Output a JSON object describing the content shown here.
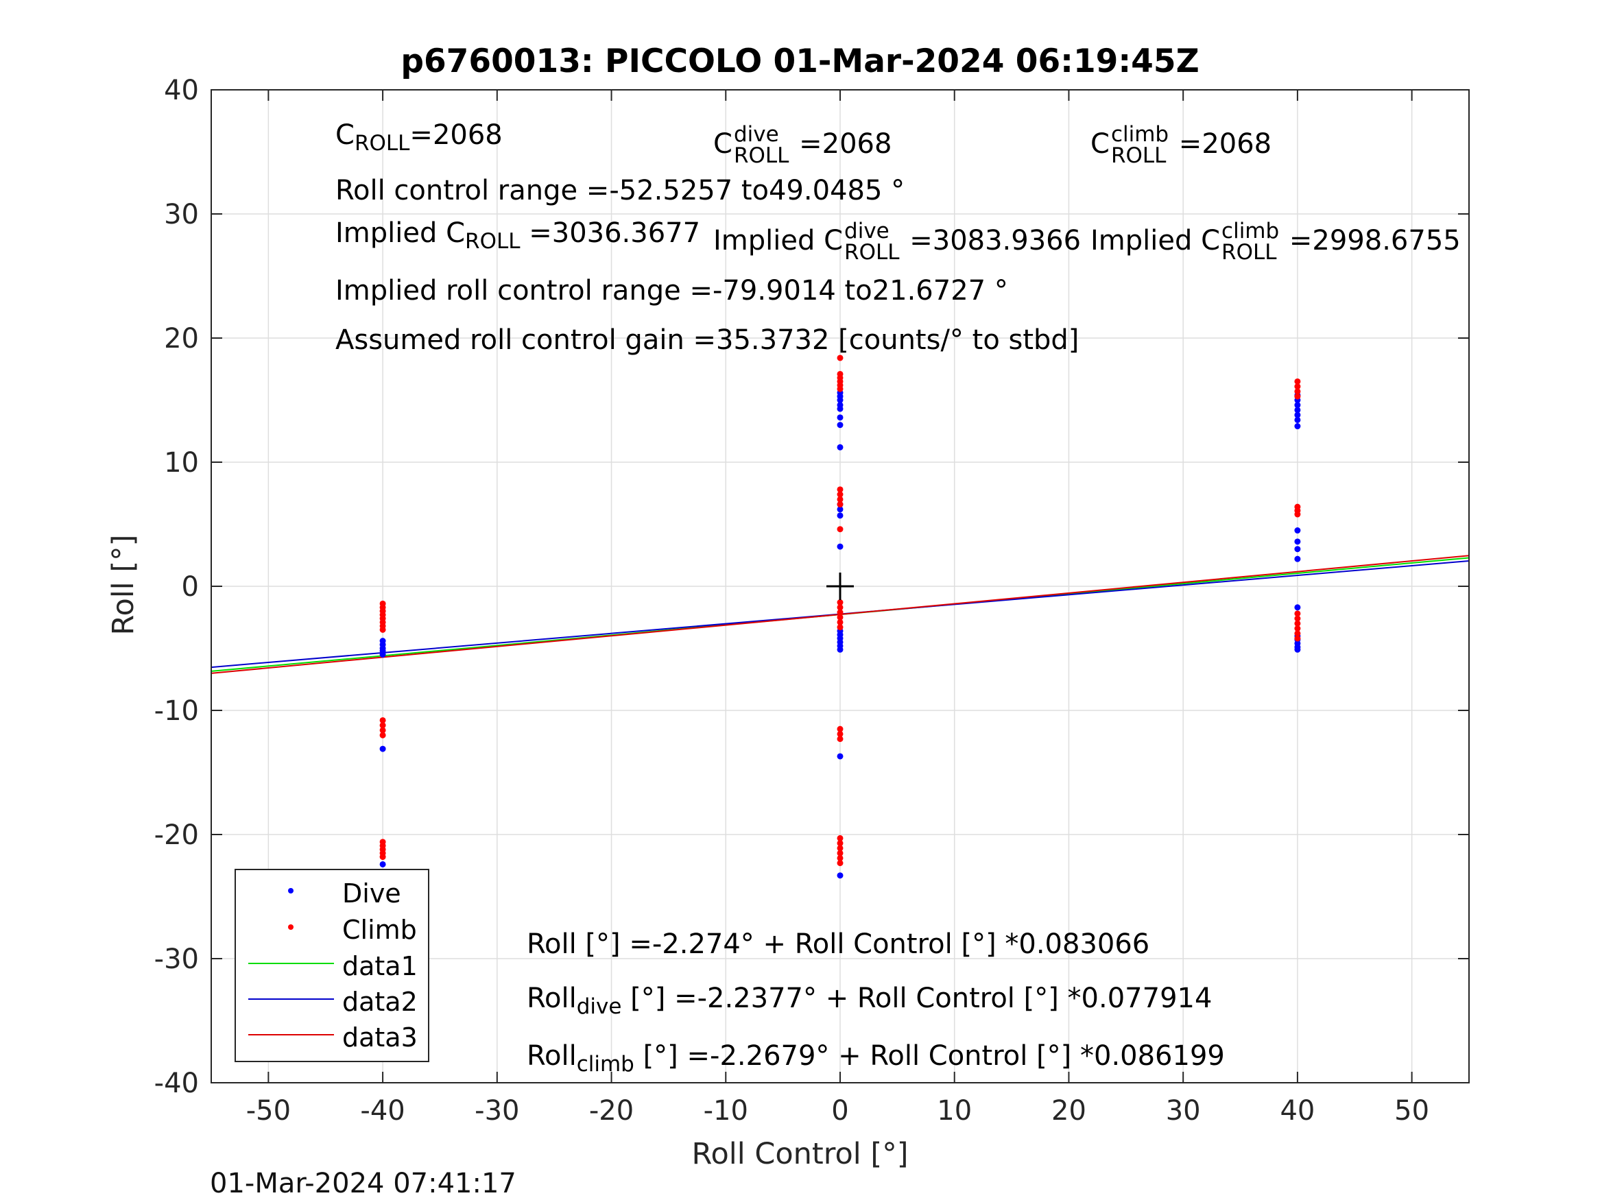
{
  "chart_data": {
    "type": "scatter",
    "title": "p6760013: PICCOLO 01-Mar-2024 06:19:45Z",
    "xlabel": "Roll Control [°]",
    "ylabel": "Roll [°]",
    "xlim": [
      -55,
      55
    ],
    "ylim": [
      -40,
      40
    ],
    "xticks": [
      -50,
      -40,
      -30,
      -20,
      -10,
      0,
      10,
      20,
      30,
      40,
      50
    ],
    "yticks": [
      -40,
      -30,
      -20,
      -10,
      0,
      10,
      20,
      30,
      40
    ],
    "grid": true,
    "legend_position": "bottom-left",
    "center_marker": [
      0,
      0
    ],
    "series": [
      {
        "name": "Dive",
        "kind": "points",
        "color": "#0000ff",
        "points": [
          [
            -40,
            -4.4
          ],
          [
            -40,
            -4.7
          ],
          [
            -40,
            -5.0
          ],
          [
            -40,
            -5.2
          ],
          [
            -40,
            -5.5
          ],
          [
            -40,
            -13.1
          ],
          [
            -40,
            -22.4
          ],
          [
            0,
            15.6
          ],
          [
            0,
            15.3
          ],
          [
            0,
            15.0
          ],
          [
            0,
            14.6
          ],
          [
            0,
            14.3
          ],
          [
            0,
            13.6
          ],
          [
            0,
            13.0
          ],
          [
            0,
            11.2
          ],
          [
            0,
            6.6
          ],
          [
            0,
            6.2
          ],
          [
            0,
            5.7
          ],
          [
            0,
            3.2
          ],
          [
            0,
            -3.6
          ],
          [
            0,
            -3.9
          ],
          [
            0,
            -4.2
          ],
          [
            0,
            -4.5
          ],
          [
            0,
            -4.8
          ],
          [
            0,
            -5.1
          ],
          [
            0,
            -13.7
          ],
          [
            0,
            -23.3
          ],
          [
            40,
            15.4
          ],
          [
            40,
            15.0
          ],
          [
            40,
            14.6
          ],
          [
            40,
            14.2
          ],
          [
            40,
            13.8
          ],
          [
            40,
            13.4
          ],
          [
            40,
            12.9
          ],
          [
            40,
            4.5
          ],
          [
            40,
            3.6
          ],
          [
            40,
            3.0
          ],
          [
            40,
            2.2
          ],
          [
            40,
            -1.7
          ],
          [
            40,
            -4.0
          ],
          [
            40,
            -4.3
          ],
          [
            40,
            -4.6
          ],
          [
            40,
            -4.9
          ],
          [
            40,
            -5.1
          ]
        ]
      },
      {
        "name": "Climb",
        "kind": "points",
        "color": "#ff0000",
        "points": [
          [
            -40,
            -1.4
          ],
          [
            -40,
            -1.7
          ],
          [
            -40,
            -2.0
          ],
          [
            -40,
            -2.3
          ],
          [
            -40,
            -2.6
          ],
          [
            -40,
            -2.9
          ],
          [
            -40,
            -3.2
          ],
          [
            -40,
            -3.5
          ],
          [
            -40,
            -10.8
          ],
          [
            -40,
            -11.2
          ],
          [
            -40,
            -11.6
          ],
          [
            -40,
            -12.0
          ],
          [
            -40,
            -20.6
          ],
          [
            -40,
            -20.9
          ],
          [
            -40,
            -21.2
          ],
          [
            -40,
            -21.5
          ],
          [
            -40,
            -21.8
          ],
          [
            -40,
            -23.9
          ],
          [
            0,
            18.4
          ],
          [
            0,
            17.1
          ],
          [
            0,
            16.8
          ],
          [
            0,
            16.5
          ],
          [
            0,
            16.2
          ],
          [
            0,
            15.9
          ],
          [
            0,
            7.8
          ],
          [
            0,
            7.4
          ],
          [
            0,
            7.0
          ],
          [
            0,
            6.6
          ],
          [
            0,
            4.6
          ],
          [
            0,
            -1.3
          ],
          [
            0,
            -1.7
          ],
          [
            0,
            -2.1
          ],
          [
            0,
            -2.5
          ],
          [
            0,
            -2.9
          ],
          [
            0,
            -3.3
          ],
          [
            0,
            -11.5
          ],
          [
            0,
            -11.9
          ],
          [
            0,
            -12.3
          ],
          [
            0,
            -20.3
          ],
          [
            0,
            -20.7
          ],
          [
            0,
            -21.1
          ],
          [
            0,
            -21.5
          ],
          [
            0,
            -21.9
          ],
          [
            0,
            -22.3
          ],
          [
            40,
            16.5
          ],
          [
            40,
            16.1
          ],
          [
            40,
            15.7
          ],
          [
            40,
            15.3
          ],
          [
            40,
            6.4
          ],
          [
            40,
            6.1
          ],
          [
            40,
            5.8
          ],
          [
            40,
            -2.2
          ],
          [
            40,
            -2.6
          ],
          [
            40,
            -3.0
          ],
          [
            40,
            -3.4
          ],
          [
            40,
            -3.8
          ],
          [
            40,
            -4.2
          ]
        ]
      },
      {
        "name": "data1",
        "kind": "line",
        "color": "#00dd00",
        "x": [
          -55,
          55
        ],
        "y": [
          -6.843,
          2.295
        ]
      },
      {
        "name": "data2",
        "kind": "line",
        "color": "#0000cc",
        "x": [
          -55,
          55
        ],
        "y": [
          -6.523,
          2.047
        ]
      },
      {
        "name": "data3",
        "kind": "line",
        "color": "#dd0000",
        "x": [
          -55,
          55
        ],
        "y": [
          -7.009,
          2.473
        ]
      }
    ]
  },
  "annotations": {
    "c_roll": {
      "main": "C",
      "sub": "ROLL",
      "tail": "=2068"
    },
    "c_roll_dive": {
      "main": "C",
      "sup": "dive",
      "sub": "ROLL",
      "tail": " =2068"
    },
    "c_roll_climb": {
      "main": "C",
      "sup": "climb",
      "sub": "ROLL",
      "tail": " =2068"
    },
    "roll_control_range": "Roll control range =-52.5257 to49.0485 °",
    "implied": {
      "head": "Implied C",
      "sub": "ROLL",
      "tail": " =3036.3677"
    },
    "implied_dive": {
      "head": "Implied C",
      "sup": "dive",
      "sub": "ROLL",
      "tail": " =3083.9366"
    },
    "implied_climb": {
      "head": "Implied C",
      "sup": "climb",
      "sub": "ROLL",
      "tail": " =2998.6755"
    },
    "implied_range": "Implied roll control range =-79.9014 to21.6727 °",
    "gain": "Assumed roll control gain =35.3732 [counts/° to stbd]",
    "fit_all": "Roll [°] =-2.274° + Roll Control [°] *0.083066",
    "fit_dive": {
      "head": "Roll",
      "sub": "dive",
      "tail": " [°] =-2.2377° + Roll Control [°] *0.077914"
    },
    "fit_climb": {
      "head": "Roll",
      "sub": "climb",
      "tail": " [°] =-2.2679° + Roll Control [°] *0.086199"
    }
  },
  "footer": {
    "timestamp": "01-Mar-2024 07:41:17"
  }
}
